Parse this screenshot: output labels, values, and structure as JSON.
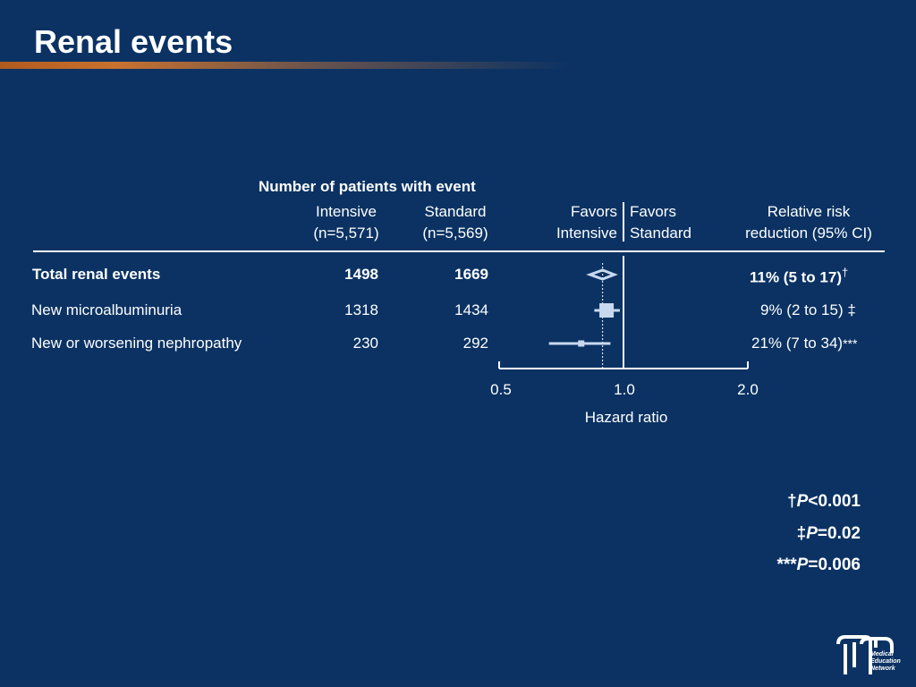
{
  "slide": {
    "title": "Renal events"
  },
  "table": {
    "group_header": "Number of patients with event",
    "columns": {
      "intensive": {
        "label": "Intensive",
        "n": "(n=5,571)"
      },
      "standard": {
        "label": "Standard",
        "n": "(n=5,569)"
      },
      "favors_intensive": [
        "Favors",
        "Intensive"
      ],
      "favors_standard": [
        "Favors",
        "Standard"
      ],
      "rrr": [
        "Relative risk",
        "reduction (95% CI)"
      ]
    }
  },
  "chart_data": {
    "type": "forest",
    "xlabel": "Hazard ratio",
    "x_scale": "log",
    "xlim": [
      0.5,
      2.0
    ],
    "x_ticks": [
      "0.5",
      "1.0",
      "2.0"
    ],
    "reference_line": 1.0,
    "rows": [
      {
        "label": "Total renal events",
        "intensive": "1498",
        "standard": "1669",
        "hr": 0.89,
        "ci_low": 0.83,
        "ci_high": 0.95,
        "marker": "diamond",
        "rrr": "11% (5 to 17)",
        "rrr_mark": "†",
        "bold": true
      },
      {
        "label": "New microalbuminuria",
        "intensive": "1318",
        "standard": "1434",
        "hr": 0.91,
        "ci_low": 0.85,
        "ci_high": 0.98,
        "marker": "square",
        "rrr": "9% (2 to 15) ‡",
        "rrr_mark": "",
        "bold": false
      },
      {
        "label": "New or worsening nephropathy",
        "intensive": "230",
        "standard": "292",
        "hr": 0.79,
        "ci_low": 0.66,
        "ci_high": 0.93,
        "marker": "square",
        "rrr": "21% (7 to 34)",
        "rrr_mark": "***",
        "bold": false
      }
    ]
  },
  "footnotes": [
    {
      "mark": "†",
      "p": "P",
      "rest": "<0.001"
    },
    {
      "mark": "‡",
      "p": "P",
      "rest": "=0.02"
    },
    {
      "mark": "***",
      "p": "P",
      "rest": "=0.006"
    }
  ],
  "logo": {
    "mark": "mEn",
    "lines": [
      "Medical",
      "Education",
      "Network"
    ]
  },
  "colors": {
    "background": "#0b3263",
    "accent_bar": "#c9722e",
    "marker": "#c8d8ee",
    "text": "#ffffff"
  }
}
